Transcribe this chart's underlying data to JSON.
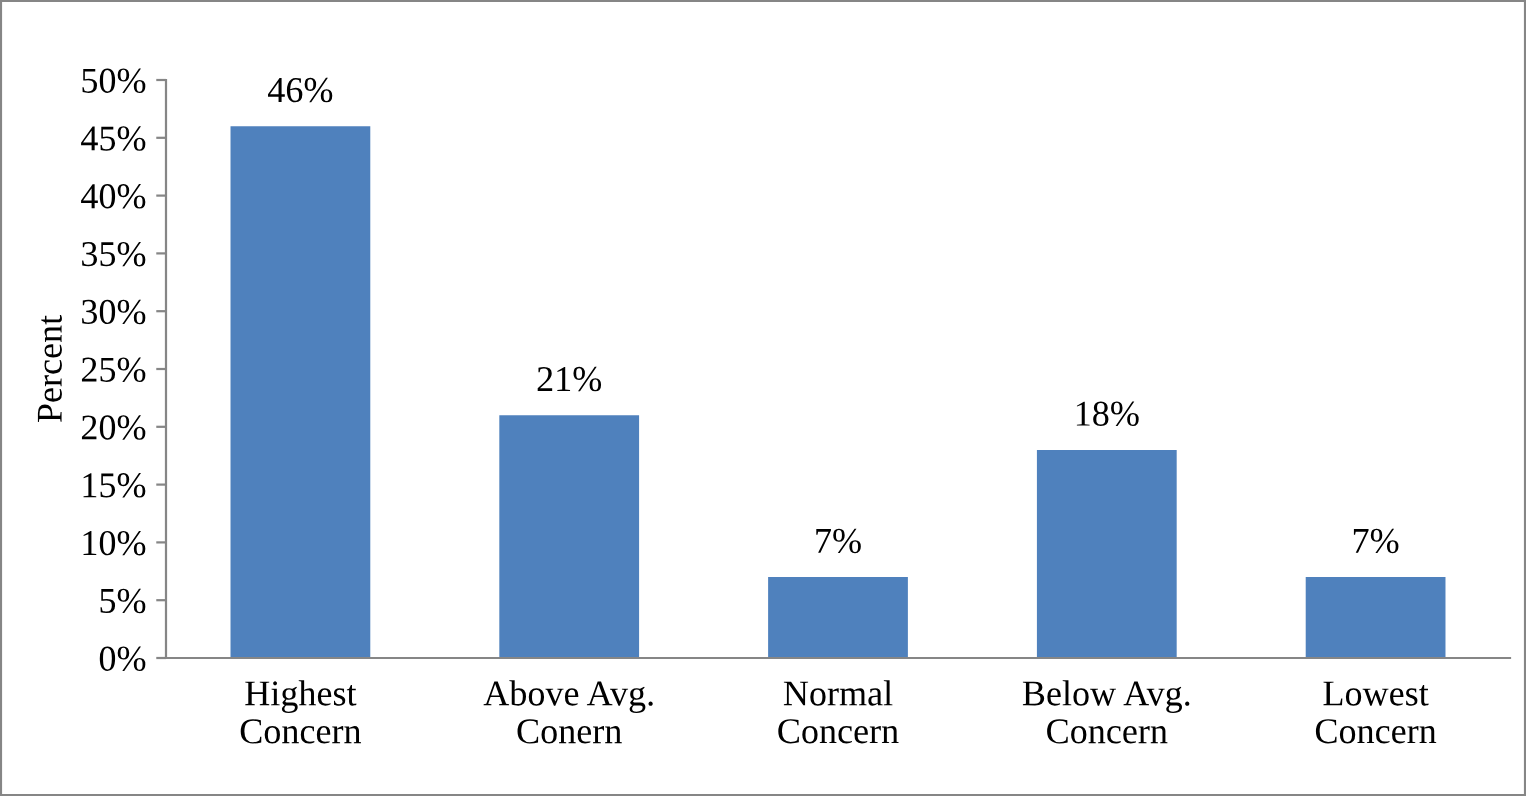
{
  "chart_data": {
    "type": "bar",
    "ylabel": "Percent",
    "categories": [
      "Highest\nConcern",
      "Above Avg.\nConern",
      "Normal\nConcern",
      "Below Avg.\nConcern",
      "Lowest\nConcern"
    ],
    "values": [
      46,
      21,
      7,
      18,
      7
    ],
    "value_labels": [
      "46%",
      "21%",
      "7%",
      "18%",
      "7%"
    ],
    "color": "#4f81bd",
    "ylim": [
      0,
      50
    ],
    "yticks": [
      {
        "value": 0,
        "label": "0%"
      },
      {
        "value": 5,
        "label": "5%"
      },
      {
        "value": 10,
        "label": "10%"
      },
      {
        "value": 15,
        "label": "15%"
      },
      {
        "value": 20,
        "label": "20%"
      },
      {
        "value": 25,
        "label": "25%"
      },
      {
        "value": 30,
        "label": "30%"
      },
      {
        "value": 35,
        "label": "35%"
      },
      {
        "value": 40,
        "label": "40%"
      },
      {
        "value": 45,
        "label": "45%"
      },
      {
        "value": 50,
        "label": "50%"
      }
    ],
    "grid": false
  }
}
